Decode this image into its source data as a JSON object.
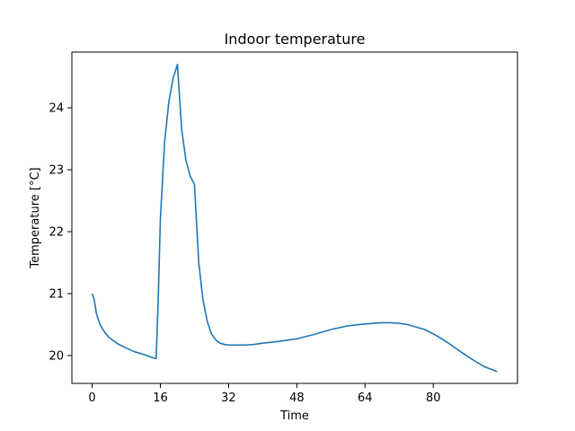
{
  "chart_data": {
    "type": "line",
    "title": "Indoor temperature",
    "xlabel": "Time",
    "ylabel": "Temperature [°C]",
    "xlim": [
      -4.75,
      99.75
    ],
    "ylim": [
      19.55,
      24.9
    ],
    "xticks": [
      0,
      16,
      32,
      48,
      64,
      80
    ],
    "yticks": [
      20,
      21,
      22,
      23,
      24
    ],
    "grid": false,
    "color": "#1f77b4",
    "series": [
      {
        "x": [
          0,
          0.5,
          1,
          1.5,
          2,
          3,
          4,
          5,
          6,
          8,
          10,
          12,
          14,
          15,
          15.5,
          16,
          17,
          18,
          19,
          20,
          21,
          22,
          23,
          24,
          25,
          26,
          27,
          28,
          29,
          30,
          31,
          32,
          34,
          36,
          38,
          40,
          44,
          48,
          52,
          56,
          60,
          64,
          68,
          70,
          72,
          74,
          76,
          78,
          80,
          82,
          84,
          86,
          88,
          90,
          92,
          95
        ],
        "y": [
          21.0,
          20.9,
          20.68,
          20.57,
          20.48,
          20.37,
          20.29,
          20.24,
          20.19,
          20.12,
          20.06,
          20.02,
          19.97,
          19.95,
          20.9,
          22.2,
          23.45,
          24.1,
          24.48,
          24.7,
          23.65,
          23.15,
          22.9,
          22.76,
          21.5,
          20.9,
          20.55,
          20.35,
          20.25,
          20.2,
          20.18,
          20.17,
          20.17,
          20.17,
          20.18,
          20.2,
          20.23,
          20.27,
          20.34,
          20.42,
          20.48,
          20.51,
          20.53,
          20.53,
          20.52,
          20.5,
          20.46,
          20.42,
          20.35,
          20.27,
          20.18,
          20.08,
          19.99,
          19.9,
          19.82,
          19.74
        ]
      }
    ]
  }
}
